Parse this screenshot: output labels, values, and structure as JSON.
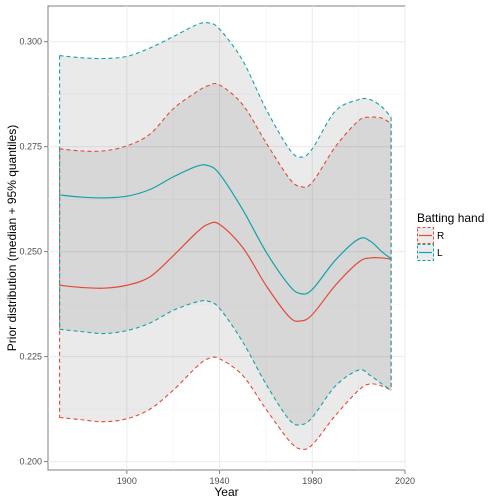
{
  "chart_data": {
    "type": "line",
    "xlabel": "Year",
    "ylabel": "Prior distribution (median + 95% quantiles)",
    "xlim": [
      1866,
      2020
    ],
    "ylim": [
      0.198,
      0.3085
    ],
    "x_ticks": [
      1900,
      1940,
      1980,
      2020
    ],
    "x_tick_labels": [
      "1900",
      "1940",
      "1980",
      "2020"
    ],
    "y_ticks": [
      0.2,
      0.225,
      0.25,
      0.275,
      0.3
    ],
    "y_tick_labels": [
      "0.200",
      "0.225",
      "0.250",
      "0.275",
      "0.300"
    ],
    "grid": true,
    "legend": {
      "title": "Batting hand",
      "position": "right",
      "entries": [
        "R",
        "L"
      ]
    },
    "x": [
      1871,
      1880,
      1890,
      1900,
      1910,
      1920,
      1930,
      1935,
      1940,
      1950,
      1960,
      1970,
      1975,
      1980,
      1990,
      2000,
      2005,
      2010,
      2014
    ],
    "series": [
      {
        "name": "R",
        "color": "#e24a3b",
        "median": [
          0.242,
          0.2415,
          0.2413,
          0.242,
          0.244,
          0.249,
          0.2545,
          0.2565,
          0.2565,
          0.251,
          0.242,
          0.2345,
          0.2335,
          0.235,
          0.242,
          0.2475,
          0.2485,
          0.2485,
          0.2482
        ],
        "lower": [
          0.2105,
          0.21,
          0.2095,
          0.2102,
          0.2125,
          0.217,
          0.2225,
          0.2245,
          0.2245,
          0.2205,
          0.2125,
          0.205,
          0.203,
          0.204,
          0.211,
          0.217,
          0.2185,
          0.218,
          0.217
        ],
        "upper": [
          0.2745,
          0.274,
          0.274,
          0.2752,
          0.278,
          0.284,
          0.288,
          0.2895,
          0.2897,
          0.285,
          0.276,
          0.2675,
          0.2655,
          0.2665,
          0.275,
          0.2812,
          0.282,
          0.2818,
          0.2805
        ]
      },
      {
        "name": "L",
        "color": "#13a3a8",
        "median": [
          0.2635,
          0.263,
          0.2628,
          0.2632,
          0.2648,
          0.2678,
          0.2703,
          0.2705,
          0.2685,
          0.26,
          0.25,
          0.242,
          0.24,
          0.241,
          0.248,
          0.253,
          0.2525,
          0.25,
          0.2483
        ],
        "lower": [
          0.2315,
          0.231,
          0.2305,
          0.2312,
          0.233,
          0.236,
          0.238,
          0.2382,
          0.2365,
          0.2285,
          0.2185,
          0.21,
          0.2088,
          0.2105,
          0.218,
          0.2218,
          0.2205,
          0.2185,
          0.217
        ],
        "upper": [
          0.2967,
          0.2962,
          0.296,
          0.2965,
          0.2985,
          0.3012,
          0.304,
          0.3045,
          0.303,
          0.2955,
          0.284,
          0.2745,
          0.2725,
          0.2745,
          0.2835,
          0.2862,
          0.2862,
          0.2845,
          0.282
        ]
      }
    ]
  }
}
